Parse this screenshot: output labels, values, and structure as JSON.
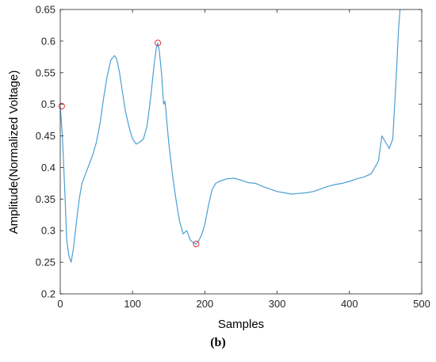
{
  "chart_data": {
    "type": "line",
    "xlabel": "Samples",
    "ylabel": "Amplitude(Normalized Voltage)",
    "xlim": [
      0,
      500
    ],
    "ylim": [
      0.2,
      0.65
    ],
    "xticks": [
      0,
      100,
      200,
      300,
      400,
      500
    ],
    "yticks": [
      0.2,
      0.25,
      0.3,
      0.35,
      0.4,
      0.45,
      0.5,
      0.55,
      0.6,
      0.65
    ],
    "xtick_labels": [
      "0",
      "100",
      "200",
      "300",
      "400",
      "500"
    ],
    "ytick_labels": [
      "0.2",
      "0.25",
      "0.3",
      "0.35",
      "0.4",
      "0.45",
      "0.5",
      "0.55",
      "0.6",
      "0.65"
    ],
    "grid": false,
    "series": [
      {
        "color": "#4a9fd4",
        "x": [
          0,
          3,
          6,
          9,
          12,
          15,
          18,
          21,
          24,
          27,
          30,
          35,
          40,
          45,
          50,
          55,
          60,
          65,
          70,
          75,
          78,
          82,
          86,
          90,
          95,
          100,
          105,
          110,
          115,
          120,
          125,
          130,
          133,
          135,
          137,
          140,
          143,
          145,
          150,
          155,
          160,
          165,
          170,
          175,
          180,
          185,
          188,
          192,
          196,
          200,
          205,
          210,
          215,
          220,
          230,
          240,
          250,
          260,
          270,
          280,
          290,
          300,
          310,
          320,
          330,
          340,
          350,
          360,
          370,
          380,
          390,
          400,
          410,
          420,
          430,
          440,
          445,
          450,
          455,
          460,
          465,
          468,
          470
        ],
        "y": [
          0.497,
          0.45,
          0.37,
          0.285,
          0.26,
          0.25,
          0.27,
          0.3,
          0.33,
          0.355,
          0.375,
          0.39,
          0.405,
          0.42,
          0.44,
          0.47,
          0.51,
          0.545,
          0.57,
          0.577,
          0.572,
          0.55,
          0.52,
          0.49,
          0.465,
          0.445,
          0.437,
          0.44,
          0.445,
          0.465,
          0.51,
          0.565,
          0.59,
          0.597,
          0.585,
          0.55,
          0.5,
          0.505,
          0.44,
          0.39,
          0.35,
          0.315,
          0.295,
          0.3,
          0.285,
          0.28,
          0.279,
          0.285,
          0.295,
          0.31,
          0.34,
          0.365,
          0.375,
          0.378,
          0.382,
          0.383,
          0.38,
          0.376,
          0.375,
          0.37,
          0.366,
          0.362,
          0.36,
          0.358,
          0.359,
          0.36,
          0.362,
          0.366,
          0.37,
          0.373,
          0.375,
          0.378,
          0.382,
          0.385,
          0.39,
          0.41,
          0.45,
          0.44,
          0.43,
          0.445,
          0.55,
          0.62,
          0.65
        ]
      },
      {
        "type": "markers",
        "color": "#e03030",
        "x": [
          2,
          135,
          188
        ],
        "y": [
          0.497,
          0.597,
          0.279
        ]
      }
    ]
  },
  "caption": "(b)"
}
